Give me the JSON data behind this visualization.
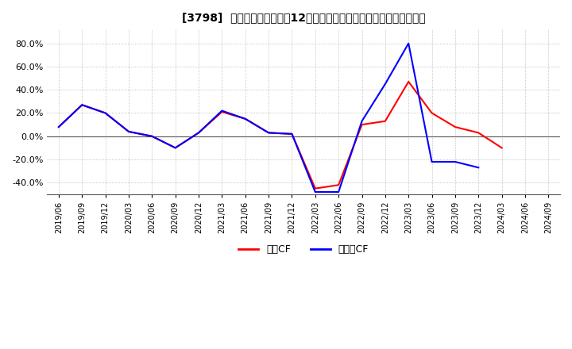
{
  "title": "[3798]  キャッシュフローの12か月移動合計の対前年同期増減率の推移",
  "ylim": [
    -50,
    92
  ],
  "yticks": [
    -40.0,
    -20.0,
    0.0,
    20.0,
    40.0,
    60.0,
    80.0
  ],
  "legend_labels": [
    "営業CF",
    "フリーCF"
  ],
  "line_colors": [
    "#ff0000",
    "#0000ff"
  ],
  "x_labels": [
    "2019/06",
    "2019/09",
    "2019/12",
    "2020/03",
    "2020/06",
    "2020/09",
    "2020/12",
    "2021/03",
    "2021/06",
    "2021/09",
    "2021/12",
    "2022/03",
    "2022/06",
    "2022/09",
    "2022/12",
    "2023/03",
    "2023/06",
    "2023/09",
    "2023/12",
    "2024/03",
    "2024/06",
    "2024/09"
  ],
  "operating_cf": [
    8.0,
    27.0,
    20.0,
    4.0,
    0.0,
    -10.0,
    3.0,
    21.0,
    15.0,
    3.0,
    2.0,
    -45.0,
    -42.0,
    10.0,
    13.0,
    47.0,
    20.0,
    8.0,
    3.0,
    -10.0,
    null,
    null
  ],
  "free_cf": [
    8.0,
    27.0,
    20.0,
    4.0,
    0.0,
    -10.0,
    3.0,
    22.0,
    15.0,
    3.0,
    2.0,
    -48.0,
    -48.0,
    13.0,
    45.0,
    80.0,
    -22.0,
    -22.0,
    -27.0,
    null,
    null,
    null
  ],
  "background_color": "#ffffff",
  "grid_color": "#b0b0b0",
  "grid_style": "dotted"
}
